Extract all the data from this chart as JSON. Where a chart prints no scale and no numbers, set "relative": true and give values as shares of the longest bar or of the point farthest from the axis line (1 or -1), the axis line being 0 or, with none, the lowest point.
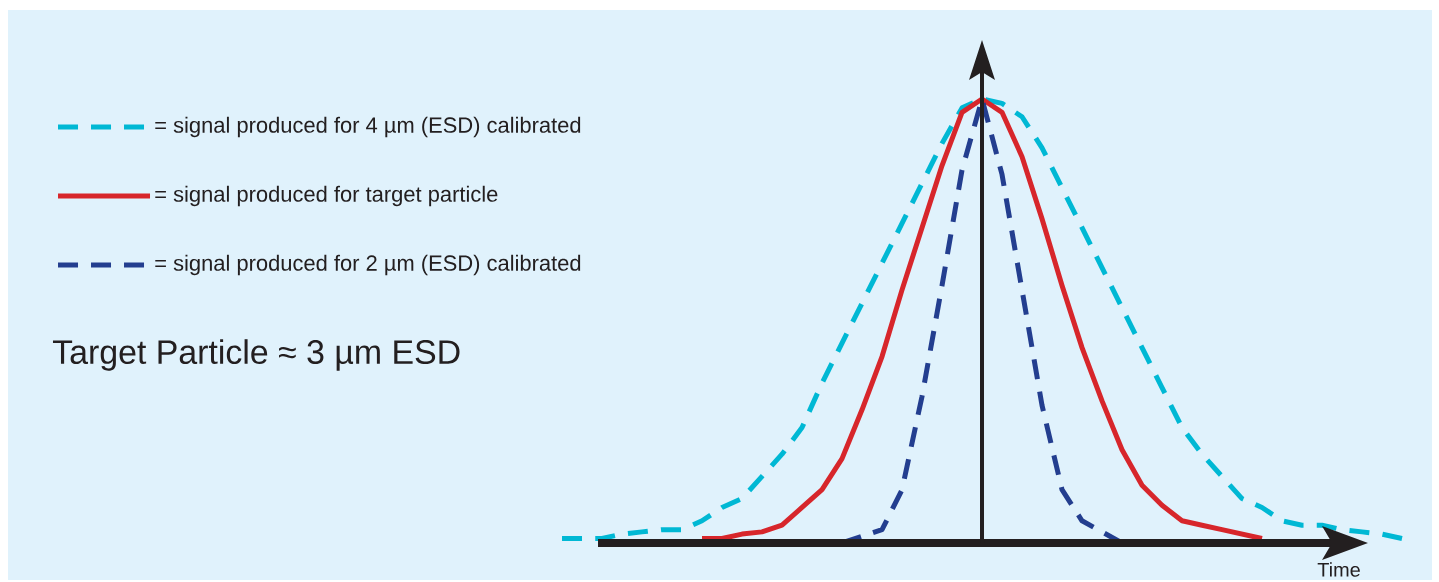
{
  "chart_data": {
    "type": "line",
    "relative": true,
    "xlabel": "Time",
    "legend": "left",
    "annotations": [
      "Target Particle ≈ 3 µm ESD"
    ],
    "categories": [
      null,
      null,
      null,
      null,
      null,
      null,
      null,
      null,
      null,
      null,
      null,
      null,
      null,
      null,
      null,
      null,
      null,
      null,
      null,
      null,
      null,
      null,
      null,
      null,
      null,
      null,
      null,
      null,
      null,
      null,
      null,
      null,
      null,
      null,
      null,
      null,
      null,
      null,
      null,
      null,
      null,
      null,
      null
    ],
    "series": [
      {
        "name": "= signal produced for 4 µm (ESD) calibrated",
        "color": "#00b8d4",
        "line_style": "dashed",
        "values": [
          0.01,
          0.01,
          0.01,
          0.02,
          0.025,
          0.03,
          0.03,
          0.05,
          0.08,
          0.1,
          0.15,
          0.2,
          0.26,
          0.36,
          0.45,
          0.54,
          0.63,
          0.72,
          0.81,
          0.9,
          0.98,
          1.0,
          0.99,
          0.96,
          0.89,
          0.8,
          0.71,
          0.62,
          0.53,
          0.44,
          0.35,
          0.26,
          0.2,
          0.15,
          0.1,
          0.08,
          0.05,
          0.04,
          0.04,
          0.03,
          0.025,
          0.02,
          0.01
        ]
      },
      {
        "name": "= signal produced for target particle",
        "color": "#d7262b",
        "line_style": "solid",
        "values": [
          null,
          null,
          null,
          null,
          null,
          null,
          null,
          0.01,
          0.01,
          0.02,
          0.025,
          0.04,
          0.08,
          0.12,
          0.19,
          0.3,
          0.42,
          0.57,
          0.71,
          0.85,
          0.97,
          1.0,
          0.97,
          0.87,
          0.73,
          0.58,
          0.44,
          0.32,
          0.21,
          0.13,
          0.085,
          0.05,
          0.04,
          0.03,
          0.02,
          0.01,
          null,
          null,
          null,
          null,
          null,
          null,
          null
        ]
      },
      {
        "name": "= signal produced for 2 µm (ESD) calibrated",
        "color": "#233e8f",
        "line_style": "dashed",
        "values": [
          null,
          null,
          null,
          null,
          null,
          null,
          null,
          null,
          null,
          null,
          null,
          null,
          null,
          null,
          0.0,
          0.015,
          0.03,
          0.12,
          0.33,
          0.58,
          0.84,
          1.0,
          0.83,
          0.57,
          0.31,
          0.12,
          0.05,
          0.025,
          0.0,
          null,
          null,
          null,
          null,
          null,
          null,
          null,
          null,
          null,
          null,
          null,
          null,
          null,
          null
        ]
      }
    ]
  }
}
